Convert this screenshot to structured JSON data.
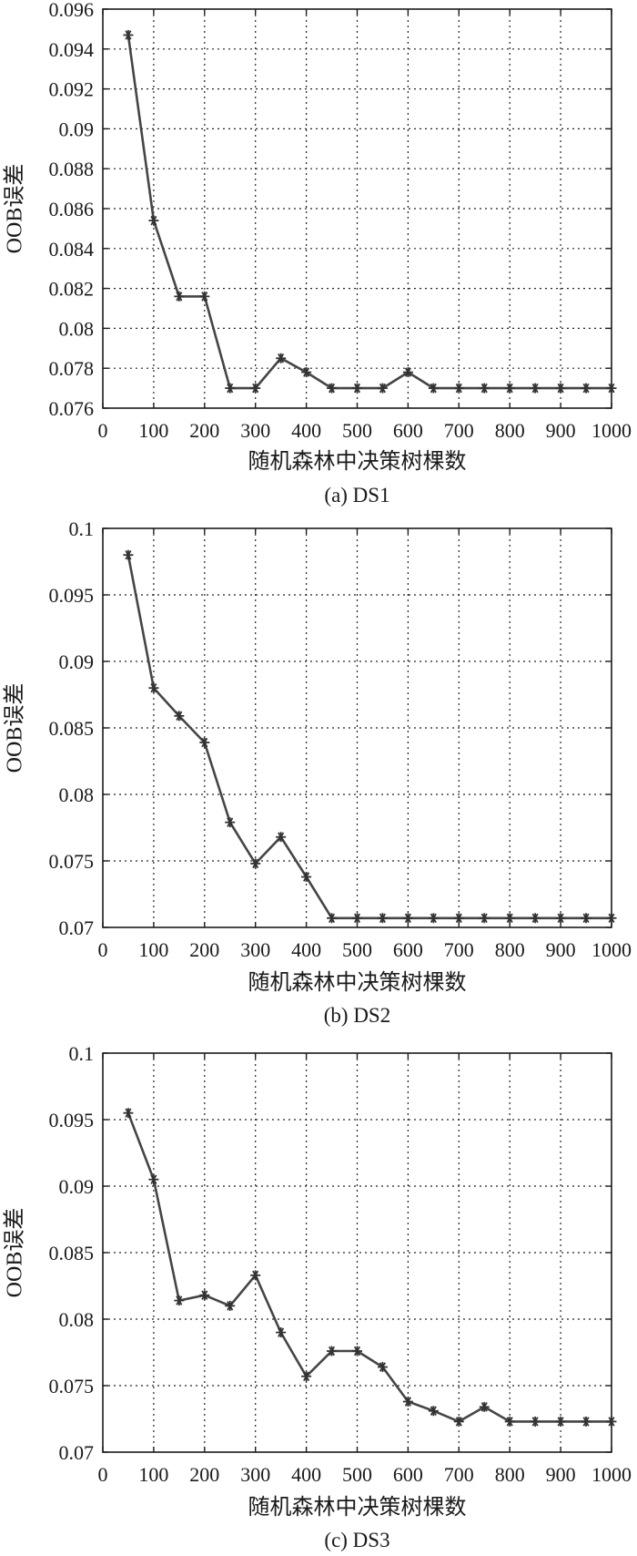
{
  "chart_data": [
    {
      "type": "line",
      "caption": "(a) DS1",
      "xlabel": "随机森林中决策树棵数",
      "ylabel": "OOB误差",
      "xlim": [
        0,
        1000
      ],
      "ylim": [
        0.076,
        0.096
      ],
      "xticks": [
        "0",
        "100",
        "200",
        "300",
        "400",
        "500",
        "600",
        "700",
        "800",
        "900",
        "1000"
      ],
      "yticks": [
        "0.076",
        "0.078",
        "0.08",
        "0.082",
        "0.084",
        "0.086",
        "0.088",
        "0.09",
        "0.092",
        "0.094",
        "0.096"
      ],
      "grid": true,
      "marker": "asterisk",
      "x": [
        50,
        100,
        150,
        200,
        250,
        300,
        350,
        400,
        450,
        500,
        550,
        600,
        650,
        700,
        750,
        800,
        850,
        900,
        950,
        1000
      ],
      "values": [
        0.0947,
        0.0854,
        0.0816,
        0.0816,
        0.077,
        0.077,
        0.0785,
        0.0778,
        0.077,
        0.077,
        0.077,
        0.0778,
        0.077,
        0.077,
        0.077,
        0.077,
        0.077,
        0.077,
        0.077,
        0.077
      ]
    },
    {
      "type": "line",
      "caption": "(b) DS2",
      "xlabel": "随机森林中决策树棵数",
      "ylabel": "OOB误差",
      "xlim": [
        0,
        1000
      ],
      "ylim": [
        0.07,
        0.1
      ],
      "xticks": [
        "0",
        "100",
        "200",
        "300",
        "400",
        "500",
        "600",
        "700",
        "800",
        "900",
        "1000"
      ],
      "yticks": [
        "0.07",
        "0.075",
        "0.08",
        "0.085",
        "0.09",
        "0.095",
        "0.1"
      ],
      "grid": true,
      "marker": "asterisk",
      "x": [
        50,
        100,
        150,
        200,
        250,
        300,
        350,
        400,
        450,
        500,
        550,
        600,
        650,
        700,
        750,
        800,
        850,
        900,
        950,
        1000
      ],
      "values": [
        0.098,
        0.088,
        0.0859,
        0.0839,
        0.0779,
        0.0748,
        0.0768,
        0.0738,
        0.0707,
        0.0707,
        0.0707,
        0.0707,
        0.0707,
        0.0707,
        0.0707,
        0.0707,
        0.0707,
        0.0707,
        0.0707,
        0.0707
      ]
    },
    {
      "type": "line",
      "caption": "(c) DS3",
      "xlabel": "随机森林中决策树棵数",
      "ylabel": "OOB误差",
      "xlim": [
        0,
        1000
      ],
      "ylim": [
        0.07,
        0.1
      ],
      "xticks": [
        "0",
        "100",
        "200",
        "300",
        "400",
        "500",
        "600",
        "700",
        "800",
        "900",
        "1000"
      ],
      "yticks": [
        "0.07",
        "0.075",
        "0.08",
        "0.085",
        "0.09",
        "0.095",
        "0.1"
      ],
      "grid": true,
      "marker": "asterisk",
      "x": [
        50,
        100,
        150,
        200,
        250,
        300,
        350,
        400,
        450,
        500,
        550,
        600,
        650,
        700,
        750,
        800,
        850,
        900,
        950,
        1000
      ],
      "values": [
        0.0955,
        0.0905,
        0.0814,
        0.0818,
        0.081,
        0.0833,
        0.079,
        0.0757,
        0.0776,
        0.0776,
        0.0764,
        0.0738,
        0.0731,
        0.0723,
        0.0734,
        0.0723,
        0.0723,
        0.0723,
        0.0723,
        0.0723
      ]
    }
  ],
  "colors": {
    "line": "#454545",
    "axis": "#1a1a1a",
    "grid": "#222222",
    "background": "#ffffff"
  }
}
